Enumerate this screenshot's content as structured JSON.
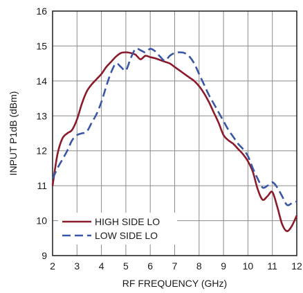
{
  "chart_data": {
    "type": "line",
    "xlabel": "RF FREQUENCY (GHz)",
    "ylabel": "INPUT P1dB (dBm)",
    "xlim": [
      2,
      12
    ],
    "ylim": [
      9,
      16
    ],
    "x_ticks": [
      "2",
      "3",
      "4",
      "5",
      "6",
      "7",
      "8",
      "9",
      "10",
      "11",
      "12"
    ],
    "y_ticks": [
      "9",
      "10",
      "11",
      "12",
      "13",
      "14",
      "15",
      "16"
    ],
    "grid": true,
    "legend_position": "bottom-left",
    "series": [
      {
        "name": "HIGH SIDE LO",
        "color": "#8b1a2b",
        "style": "solid",
        "x": [
          2.0,
          2.2,
          2.4,
          2.6,
          2.8,
          3.0,
          3.2,
          3.4,
          3.6,
          3.8,
          4.0,
          4.2,
          4.4,
          4.6,
          4.8,
          5.0,
          5.2,
          5.4,
          5.6,
          5.8,
          6.0,
          6.2,
          6.4,
          6.6,
          6.8,
          7.0,
          7.2,
          7.4,
          7.6,
          7.8,
          8.0,
          8.2,
          8.4,
          8.6,
          8.8,
          9.0,
          9.2,
          9.4,
          9.6,
          9.8,
          10.0,
          10.2,
          10.4,
          10.6,
          10.8,
          11.0,
          11.2,
          11.4,
          11.6,
          11.8,
          12.0
        ],
        "y": [
          11.0,
          11.9,
          12.35,
          12.5,
          12.6,
          12.9,
          13.35,
          13.7,
          13.9,
          14.05,
          14.2,
          14.4,
          14.55,
          14.7,
          14.8,
          14.82,
          14.8,
          14.75,
          14.62,
          14.72,
          14.68,
          14.65,
          14.6,
          14.55,
          14.5,
          14.4,
          14.3,
          14.2,
          14.1,
          14.0,
          13.85,
          13.65,
          13.4,
          13.1,
          12.8,
          12.45,
          12.3,
          12.2,
          12.05,
          11.9,
          11.7,
          11.4,
          10.9,
          10.6,
          10.7,
          10.82,
          10.4,
          9.9,
          9.7,
          9.85,
          10.15
        ]
      },
      {
        "name": "LOW SIDE LO",
        "color": "#3a56a6",
        "style": "dashed",
        "x": [
          2.0,
          2.2,
          2.4,
          2.6,
          2.8,
          3.0,
          3.2,
          3.4,
          3.6,
          3.8,
          4.0,
          4.2,
          4.4,
          4.6,
          4.8,
          5.0,
          5.2,
          5.4,
          5.6,
          5.8,
          6.0,
          6.2,
          6.4,
          6.6,
          6.8,
          7.0,
          7.2,
          7.4,
          7.6,
          7.8,
          8.0,
          8.2,
          8.4,
          8.6,
          8.8,
          9.0,
          9.2,
          9.4,
          9.6,
          9.8,
          10.0,
          10.2,
          10.4,
          10.6,
          10.8,
          11.0,
          11.2,
          11.4,
          11.6,
          11.8,
          12.0
        ],
        "y": [
          11.2,
          11.5,
          11.75,
          12.0,
          12.3,
          12.45,
          12.5,
          12.55,
          12.8,
          13.05,
          13.4,
          13.85,
          14.25,
          14.5,
          14.4,
          14.3,
          14.65,
          14.92,
          14.88,
          14.82,
          14.92,
          14.85,
          14.7,
          14.58,
          14.72,
          14.8,
          14.82,
          14.8,
          14.7,
          14.5,
          14.2,
          13.9,
          13.6,
          13.35,
          13.1,
          12.85,
          12.6,
          12.4,
          12.2,
          12.05,
          11.85,
          11.5,
          11.2,
          10.95,
          11.0,
          11.1,
          10.95,
          10.7,
          10.45,
          10.5,
          10.55
        ]
      }
    ]
  }
}
